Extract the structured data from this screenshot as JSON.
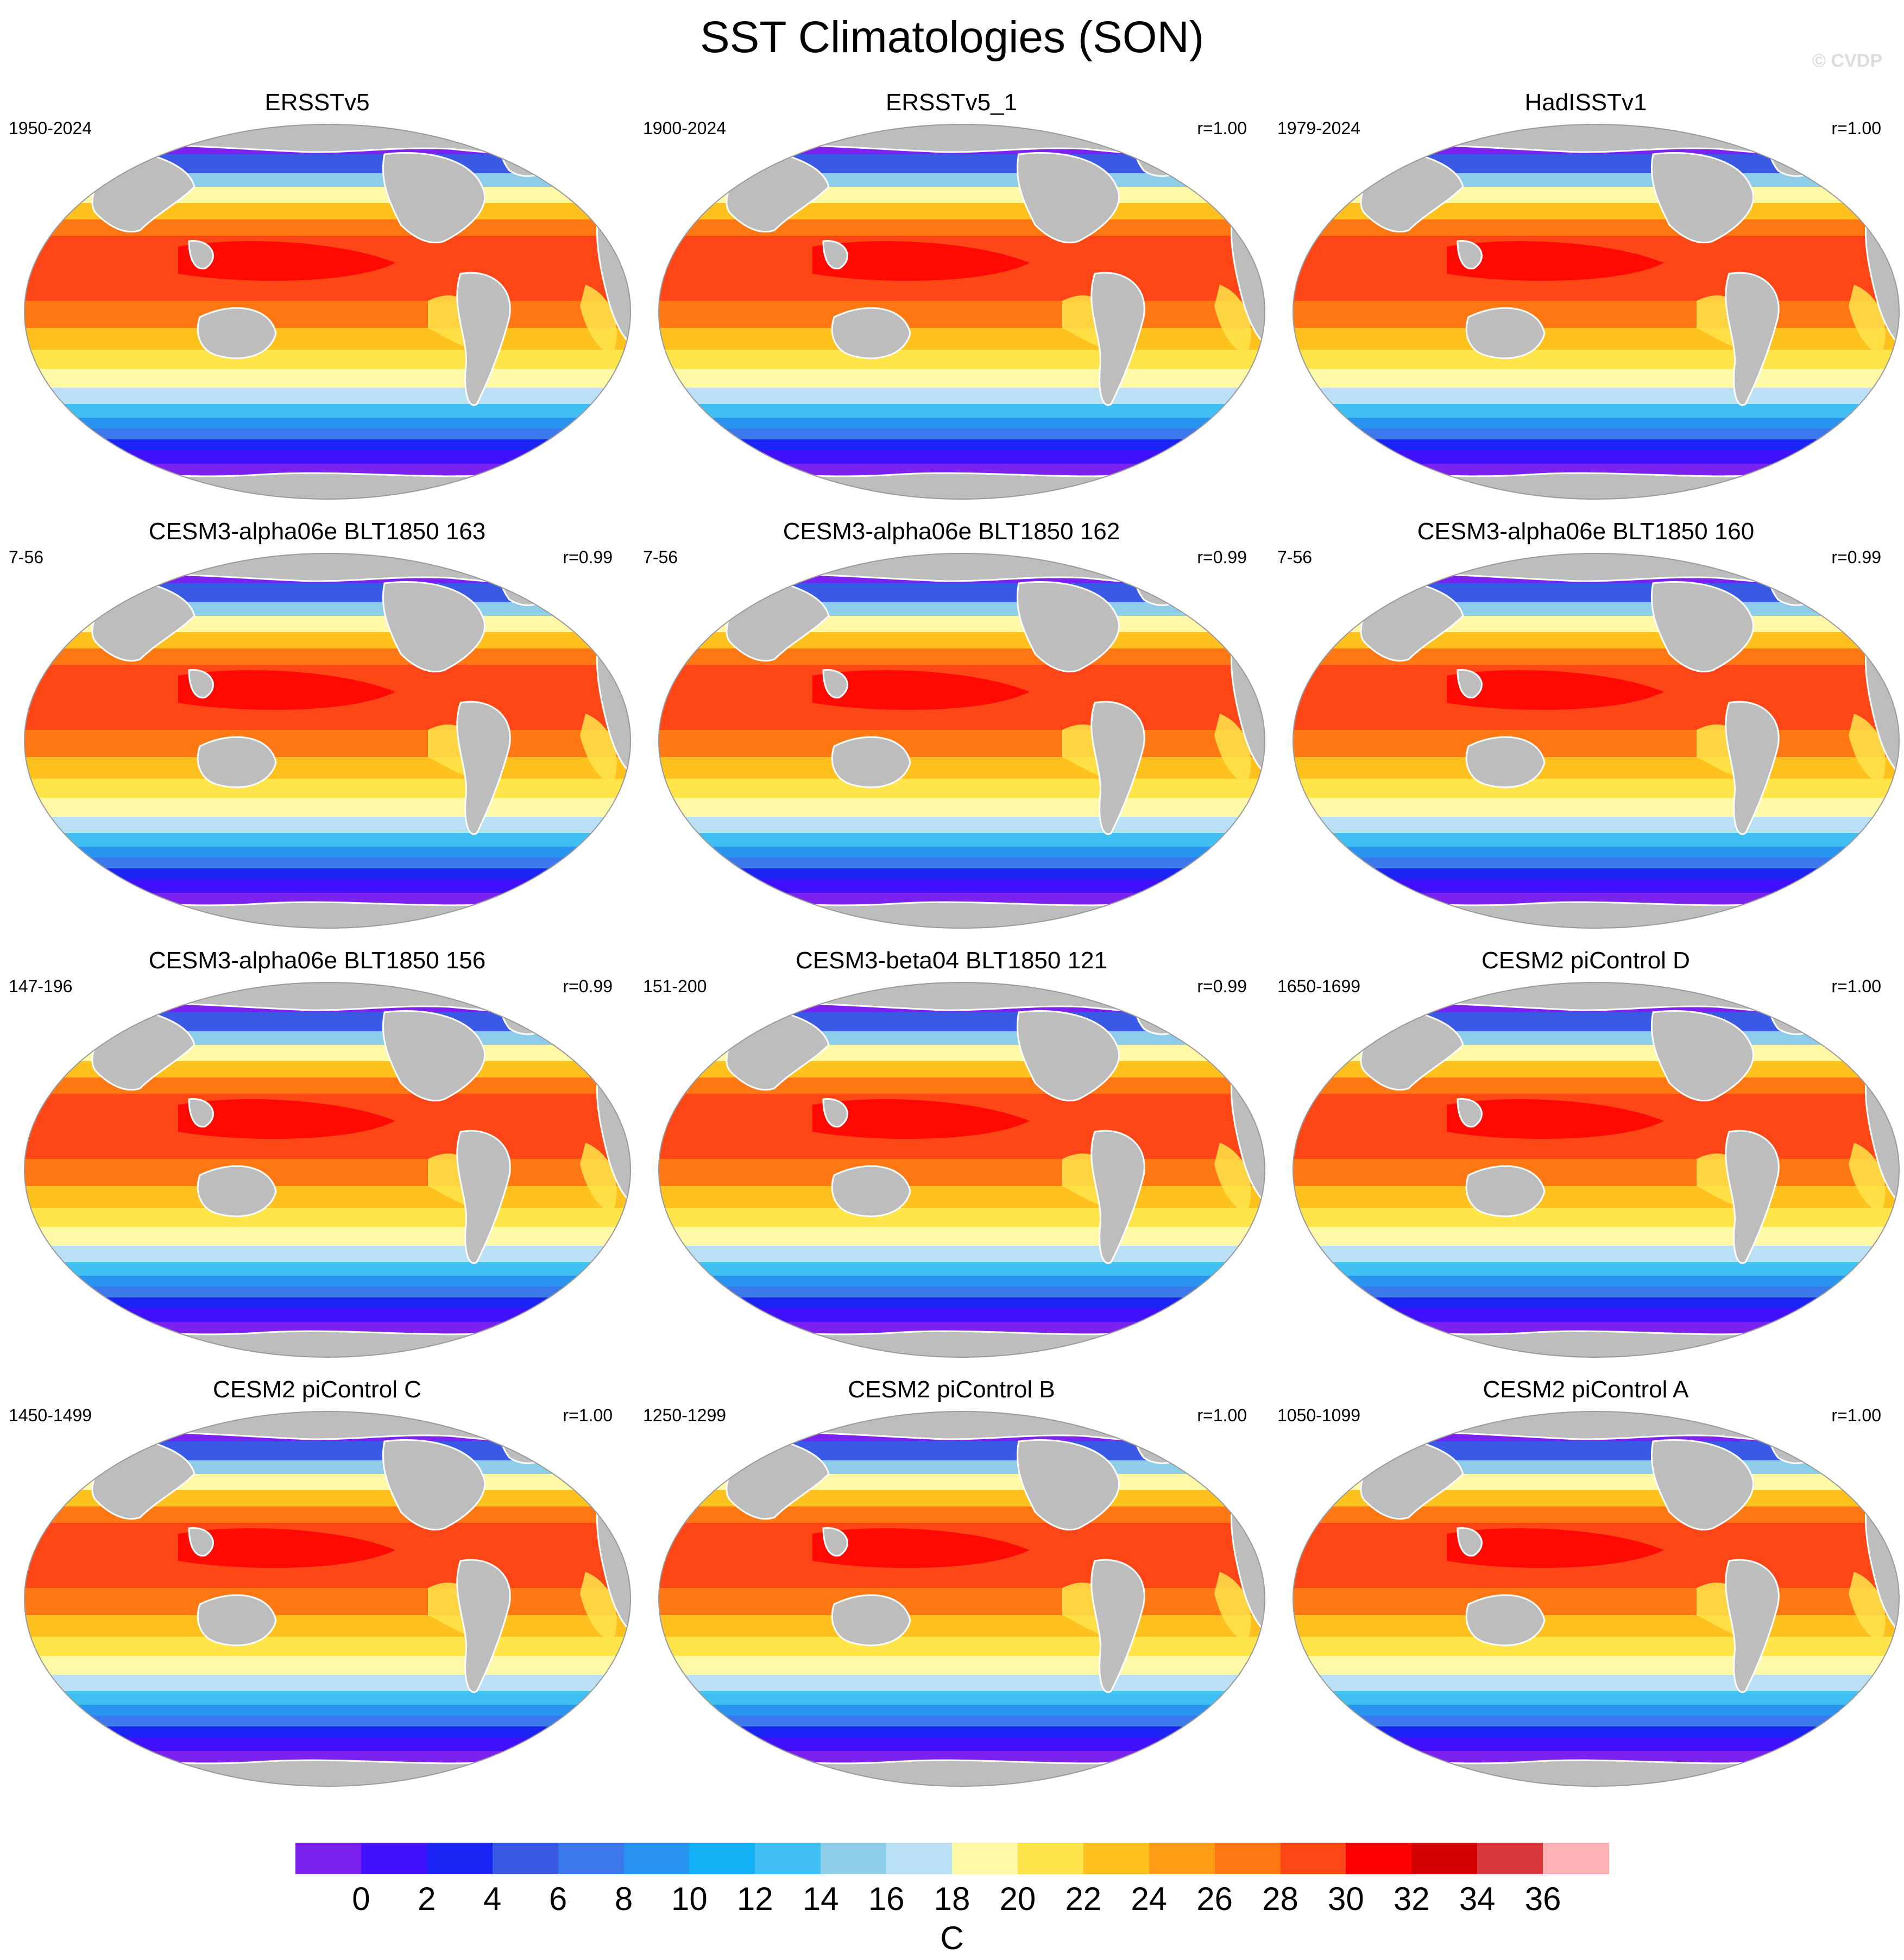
{
  "title": "SST Climatologies (SON)",
  "watermark": "© CVDP",
  "panels": [
    {
      "title": "ERSSTv5",
      "period": "1950-2024",
      "r": ""
    },
    {
      "title": "ERSSTv5_1",
      "period": "1900-2024",
      "r": "r=1.00"
    },
    {
      "title": "HadISSTv1",
      "period": "1979-2024",
      "r": "r=1.00"
    },
    {
      "title": "CESM3-alpha06e BLT1850 163",
      "period": "7-56",
      "r": "r=0.99"
    },
    {
      "title": "CESM3-alpha06e BLT1850 162",
      "period": "7-56",
      "r": "r=0.99"
    },
    {
      "title": "CESM3-alpha06e BLT1850 160",
      "period": "7-56",
      "r": "r=0.99"
    },
    {
      "title": "CESM3-alpha06e BLT1850 156",
      "period": "147-196",
      "r": "r=0.99"
    },
    {
      "title": "CESM3-beta04 BLT1850 121",
      "period": "151-200",
      "r": "r=0.99"
    },
    {
      "title": "CESM2 piControl D",
      "period": "1650-1699",
      "r": "r=1.00"
    },
    {
      "title": "CESM2 piControl C",
      "period": "1450-1499",
      "r": "r=1.00"
    },
    {
      "title": "CESM2 piControl B",
      "period": "1250-1299",
      "r": "r=1.00"
    },
    {
      "title": "CESM2 piControl A",
      "period": "1050-1099",
      "r": "r=1.00"
    }
  ],
  "colorbar": {
    "units": "C",
    "tick_labels": [
      "0",
      "2",
      "4",
      "6",
      "8",
      "10",
      "12",
      "14",
      "16",
      "18",
      "20",
      "22",
      "24",
      "26",
      "28",
      "30",
      "32",
      "34",
      "36"
    ],
    "colors": [
      "#7b22f0",
      "#4010ff",
      "#1a24f5",
      "#3a5ae6",
      "#3a78ec",
      "#2894f0",
      "#14b0f6",
      "#40c0f2",
      "#8ecdea",
      "#b9e0f4",
      "#fff8a6",
      "#ffe44a",
      "#ffc11e",
      "#ff9c16",
      "#ff7814",
      "#ff4616",
      "#ff0000",
      "#d40000",
      "#d9383c",
      "#ffb2b6"
    ]
  },
  "style": {
    "land": "#bdbdbd",
    "coast": "#ffffff",
    "ocean_outline": "#9a9a9a"
  }
}
